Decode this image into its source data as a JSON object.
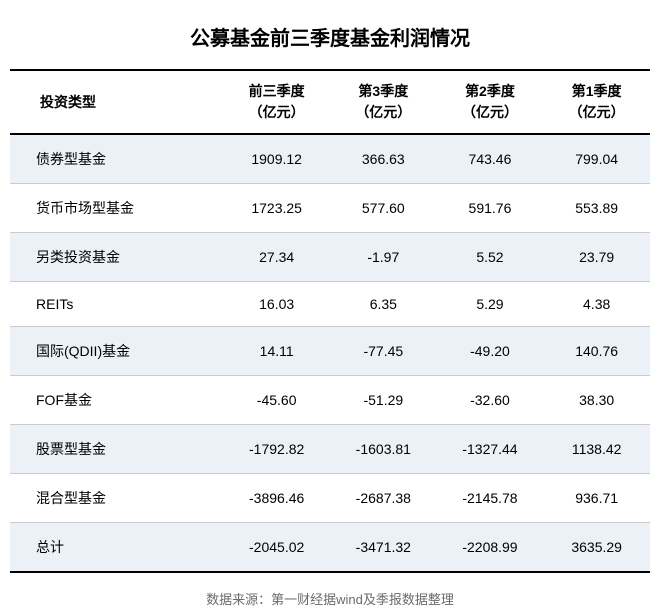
{
  "title": "公募基金前三季度基金利润情况",
  "columns": [
    {
      "l1": "投资类型",
      "l2": ""
    },
    {
      "l1": "前三季度",
      "l2": "（亿元）"
    },
    {
      "l1": "第3季度",
      "l2": "（亿元）"
    },
    {
      "l1": "第2季度",
      "l2": "（亿元）"
    },
    {
      "l1": "第1季度",
      "l2": "（亿元）"
    }
  ],
  "rows": [
    {
      "c0": "债券型基金",
      "c1": "1909.12",
      "c2": "366.63",
      "c3": "743.46",
      "c4": "799.04"
    },
    {
      "c0": "货币市场型基金",
      "c1": "1723.25",
      "c2": "577.60",
      "c3": "591.76",
      "c4": "553.89"
    },
    {
      "c0": "另类投资基金",
      "c1": "27.34",
      "c2": "-1.97",
      "c3": "5.52",
      "c4": "23.79"
    },
    {
      "c0": "REITs",
      "c1": "16.03",
      "c2": "6.35",
      "c3": "5.29",
      "c4": "4.38"
    },
    {
      "c0": "国际(QDII)基金",
      "c1": "14.11",
      "c2": "-77.45",
      "c3": "-49.20",
      "c4": "140.76"
    },
    {
      "c0": "FOF基金",
      "c1": "-45.60",
      "c2": "-51.29",
      "c3": "-32.60",
      "c4": "38.30"
    },
    {
      "c0": "股票型基金",
      "c1": "-1792.82",
      "c2": "-1603.81",
      "c3": "-1327.44",
      "c4": "1138.42"
    },
    {
      "c0": "混合型基金",
      "c1": "-3896.46",
      "c2": "-2687.38",
      "c3": "-2145.78",
      "c4": "936.71"
    },
    {
      "c0": "总计",
      "c1": "-2045.02",
      "c2": "-3471.32",
      "c3": "-2208.99",
      "c4": "3635.29"
    }
  ],
  "stripe_color": "#ecf1f8",
  "border_color_heavy": "#000000",
  "border_color_light": "#cccccc",
  "background_color": "#ffffff",
  "source": "数据来源：第一财经据wind及季报数据整理"
}
